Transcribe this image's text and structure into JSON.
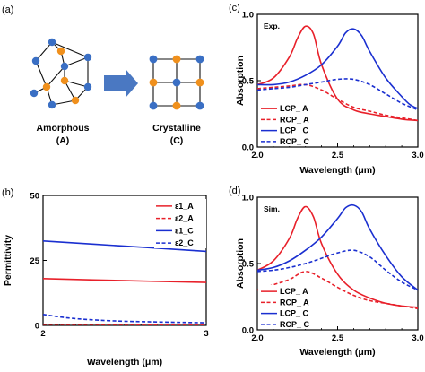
{
  "panel_labels": [
    "(a)",
    "(b)",
    "(c)",
    "(d)"
  ],
  "diagram": {
    "left_label": "Amorphous",
    "left_sub": "(A)",
    "right_label": "Crystalline",
    "right_sub": "(C)",
    "colors": {
      "blue": "#3a6fc4",
      "orange": "#f0901c",
      "arrow": "#4a78c2"
    }
  },
  "chart_data": [
    {
      "id": "b",
      "type": "line",
      "xlabel": "Wavelength (μm)",
      "ylabel": "Permittivity",
      "xlim": [
        2,
        3
      ],
      "ylim": [
        0,
        50
      ],
      "xticks": [
        "2",
        "3"
      ],
      "yticks": [
        "0",
        "25",
        "50"
      ],
      "legend_position": "top-right",
      "series": [
        {
          "name": "ε1_A",
          "color": "#e8202a",
          "dash": false,
          "x": [
            2,
            2.5,
            3
          ],
          "y": [
            18,
            17.2,
            16.5
          ]
        },
        {
          "name": "ε2_A",
          "color": "#e8202a",
          "dash": true,
          "x": [
            2,
            2.5,
            3
          ],
          "y": [
            0.4,
            0.3,
            0.2
          ]
        },
        {
          "name": "ε1_C",
          "color": "#1a2fd0",
          "dash": false,
          "x": [
            2,
            2.5,
            3
          ],
          "y": [
            32.5,
            30.5,
            28.5
          ]
        },
        {
          "name": "ε2_C",
          "color": "#1a2fd0",
          "dash": true,
          "x": [
            2,
            2.2,
            2.5,
            3
          ],
          "y": [
            4.2,
            2.6,
            1.6,
            1.0
          ]
        }
      ]
    },
    {
      "id": "c",
      "type": "line",
      "note": "Exp.",
      "xlabel": "Wavelength (μm)",
      "ylabel": "Absorption",
      "xlim": [
        2,
        3
      ],
      "ylim": [
        0,
        1
      ],
      "xticks": [
        "2.0",
        "2.5",
        "3.0"
      ],
      "yticks": [
        "0.0",
        "0.5",
        "1.0"
      ],
      "legend_position": "bottom-left",
      "series": [
        {
          "name": "LCP_ A",
          "color": "#e8202a",
          "dash": false,
          "x": [
            2.0,
            2.1,
            2.2,
            2.25,
            2.3,
            2.35,
            2.4,
            2.5,
            2.6,
            2.7,
            2.8,
            2.9,
            3.0
          ],
          "y": [
            0.47,
            0.52,
            0.68,
            0.82,
            0.91,
            0.85,
            0.62,
            0.36,
            0.28,
            0.25,
            0.23,
            0.21,
            0.2
          ]
        },
        {
          "name": "RCP_ A",
          "color": "#e8202a",
          "dash": true,
          "x": [
            2.0,
            2.1,
            2.2,
            2.3,
            2.4,
            2.5,
            2.6,
            2.7,
            2.8,
            2.9,
            3.0
          ],
          "y": [
            0.44,
            0.45,
            0.46,
            0.47,
            0.43,
            0.36,
            0.3,
            0.27,
            0.24,
            0.22,
            0.2
          ]
        },
        {
          "name": "LCP_ C",
          "color": "#1a2fd0",
          "dash": false,
          "x": [
            2.0,
            2.1,
            2.2,
            2.3,
            2.4,
            2.5,
            2.55,
            2.6,
            2.65,
            2.7,
            2.8,
            2.9,
            2.95,
            3.0
          ],
          "y": [
            0.47,
            0.47,
            0.49,
            0.54,
            0.62,
            0.76,
            0.86,
            0.89,
            0.84,
            0.72,
            0.52,
            0.38,
            0.32,
            0.29
          ]
        },
        {
          "name": "RCP_ C",
          "color": "#1a2fd0",
          "dash": true,
          "x": [
            2.0,
            2.1,
            2.2,
            2.3,
            2.4,
            2.5,
            2.6,
            2.7,
            2.8,
            2.9,
            3.0
          ],
          "y": [
            0.43,
            0.44,
            0.45,
            0.47,
            0.49,
            0.51,
            0.51,
            0.47,
            0.4,
            0.33,
            0.28
          ]
        }
      ]
    },
    {
      "id": "d",
      "type": "line",
      "note": "Sim.",
      "xlabel": "Wavelength (μm)",
      "ylabel": "Absorption",
      "xlim": [
        2,
        3
      ],
      "ylim": [
        0,
        1
      ],
      "xticks": [
        "2.0",
        "2.5",
        "3.0"
      ],
      "yticks": [
        "0.0",
        "0.5",
        "1.0"
      ],
      "legend_position": "bottom-left",
      "series": [
        {
          "name": "LCP_ A",
          "color": "#e8202a",
          "dash": false,
          "x": [
            2.0,
            2.1,
            2.2,
            2.25,
            2.3,
            2.35,
            2.4,
            2.5,
            2.6,
            2.7,
            2.8,
            2.9,
            3.0
          ],
          "y": [
            0.45,
            0.52,
            0.69,
            0.84,
            0.93,
            0.85,
            0.65,
            0.42,
            0.3,
            0.24,
            0.2,
            0.18,
            0.17
          ]
        },
        {
          "name": "RCP_ A",
          "color": "#e8202a",
          "dash": true,
          "x": [
            2.0,
            2.1,
            2.2,
            2.3,
            2.4,
            2.5,
            2.6,
            2.7,
            2.8,
            2.9,
            3.0
          ],
          "y": [
            0.3,
            0.34,
            0.38,
            0.44,
            0.39,
            0.32,
            0.26,
            0.22,
            0.2,
            0.18,
            0.16
          ]
        },
        {
          "name": "LCP_ C",
          "color": "#1a2fd0",
          "dash": false,
          "x": [
            2.0,
            2.1,
            2.2,
            2.3,
            2.4,
            2.5,
            2.55,
            2.6,
            2.65,
            2.7,
            2.8,
            2.9,
            3.0
          ],
          "y": [
            0.45,
            0.47,
            0.52,
            0.6,
            0.7,
            0.84,
            0.92,
            0.94,
            0.89,
            0.76,
            0.56,
            0.4,
            0.3
          ]
        },
        {
          "name": "RCP_ C",
          "color": "#1a2fd0",
          "dash": true,
          "x": [
            2.0,
            2.1,
            2.2,
            2.3,
            2.4,
            2.5,
            2.6,
            2.7,
            2.8,
            2.9,
            3.0
          ],
          "y": [
            0.44,
            0.45,
            0.47,
            0.5,
            0.54,
            0.58,
            0.6,
            0.55,
            0.45,
            0.36,
            0.3
          ]
        }
      ]
    }
  ]
}
